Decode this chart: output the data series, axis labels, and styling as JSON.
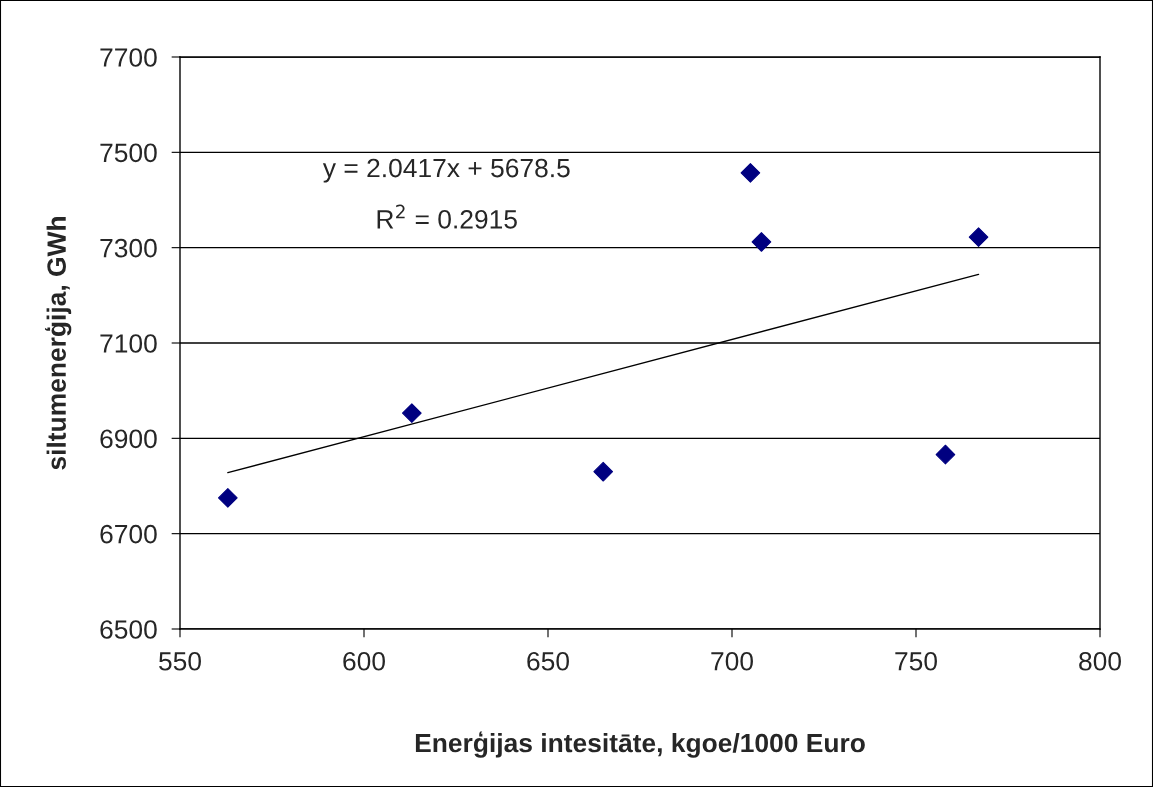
{
  "chart_data": {
    "type": "scatter",
    "xlabel": "Enerģijas intesitāte, kgoe/1000 Euro",
    "ylabel": "siltumenerģija, GWh",
    "series": [
      {
        "color": "#000080",
        "marker": "diamond",
        "x": [
          563,
          613,
          665,
          705,
          708,
          758,
          767
        ],
        "values": [
          6775,
          6953,
          6830,
          7457,
          7312,
          6866,
          7322
        ]
      },
      {
        "type": "line",
        "color": "#000000",
        "marker": "none",
        "line_style": "solid",
        "x": [
          563,
          767
        ],
        "values": [
          6828,
          7244
        ]
      }
    ],
    "annotations": [
      "y = 2.0417x + 5678.5",
      "R$^{2}$ = 0.2915"
    ],
    "xlim": [
      550,
      800
    ],
    "xticks": [
      550,
      600,
      650,
      700,
      750,
      800
    ],
    "ylim": [
      6500,
      7700
    ],
    "yticks": [
      6500,
      6700,
      6900,
      7100,
      7300,
      7500,
      7700
    ],
    "grid": "y",
    "legend": false
  }
}
